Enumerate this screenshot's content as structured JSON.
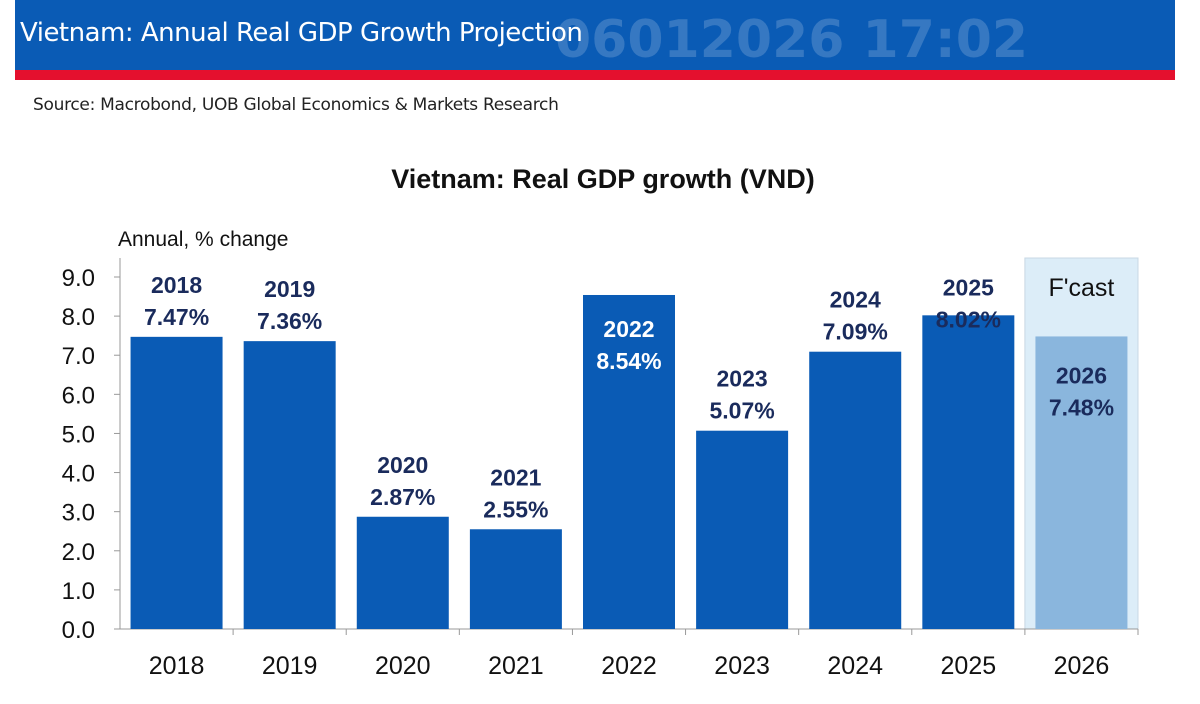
{
  "header": {
    "title": "Vietnam: Annual Real GDP Growth Projection",
    "watermark": "06012026 17:02",
    "source": "Source: Macrobond, UOB Global Economics & Markets Research",
    "banner_color": "#0a5bb5",
    "stripe_color": "#e4102e"
  },
  "chart_data": {
    "type": "bar",
    "title": "Vietnam: Real GDP growth (VND)",
    "ylabel": "Annual, % change",
    "xlabel": "",
    "ylim": [
      0,
      9
    ],
    "yticks": [
      "0.0",
      "1.0",
      "2.0",
      "3.0",
      "4.0",
      "5.0",
      "6.0",
      "7.0",
      "8.0",
      "9.0"
    ],
    "categories": [
      "2018",
      "2019",
      "2020",
      "2021",
      "2022",
      "2023",
      "2024",
      "2025",
      "2026"
    ],
    "values": [
      7.47,
      7.36,
      2.87,
      2.55,
      8.54,
      5.07,
      7.09,
      8.02,
      7.48
    ],
    "data_labels": [
      "7.47%",
      "7.36%",
      "2.87%",
      "2.55%",
      "8.54%",
      "5.07%",
      "7.09%",
      "8.02%",
      "7.48%"
    ],
    "forecast": {
      "label": "F'cast",
      "categories": [
        "2026"
      ]
    },
    "colors": {
      "actual": "#0a5bb5",
      "forecast": "#8ab6dd",
      "forecast_bg": "#dcedf8",
      "label": "#1a2b5c"
    },
    "grid": false
  }
}
